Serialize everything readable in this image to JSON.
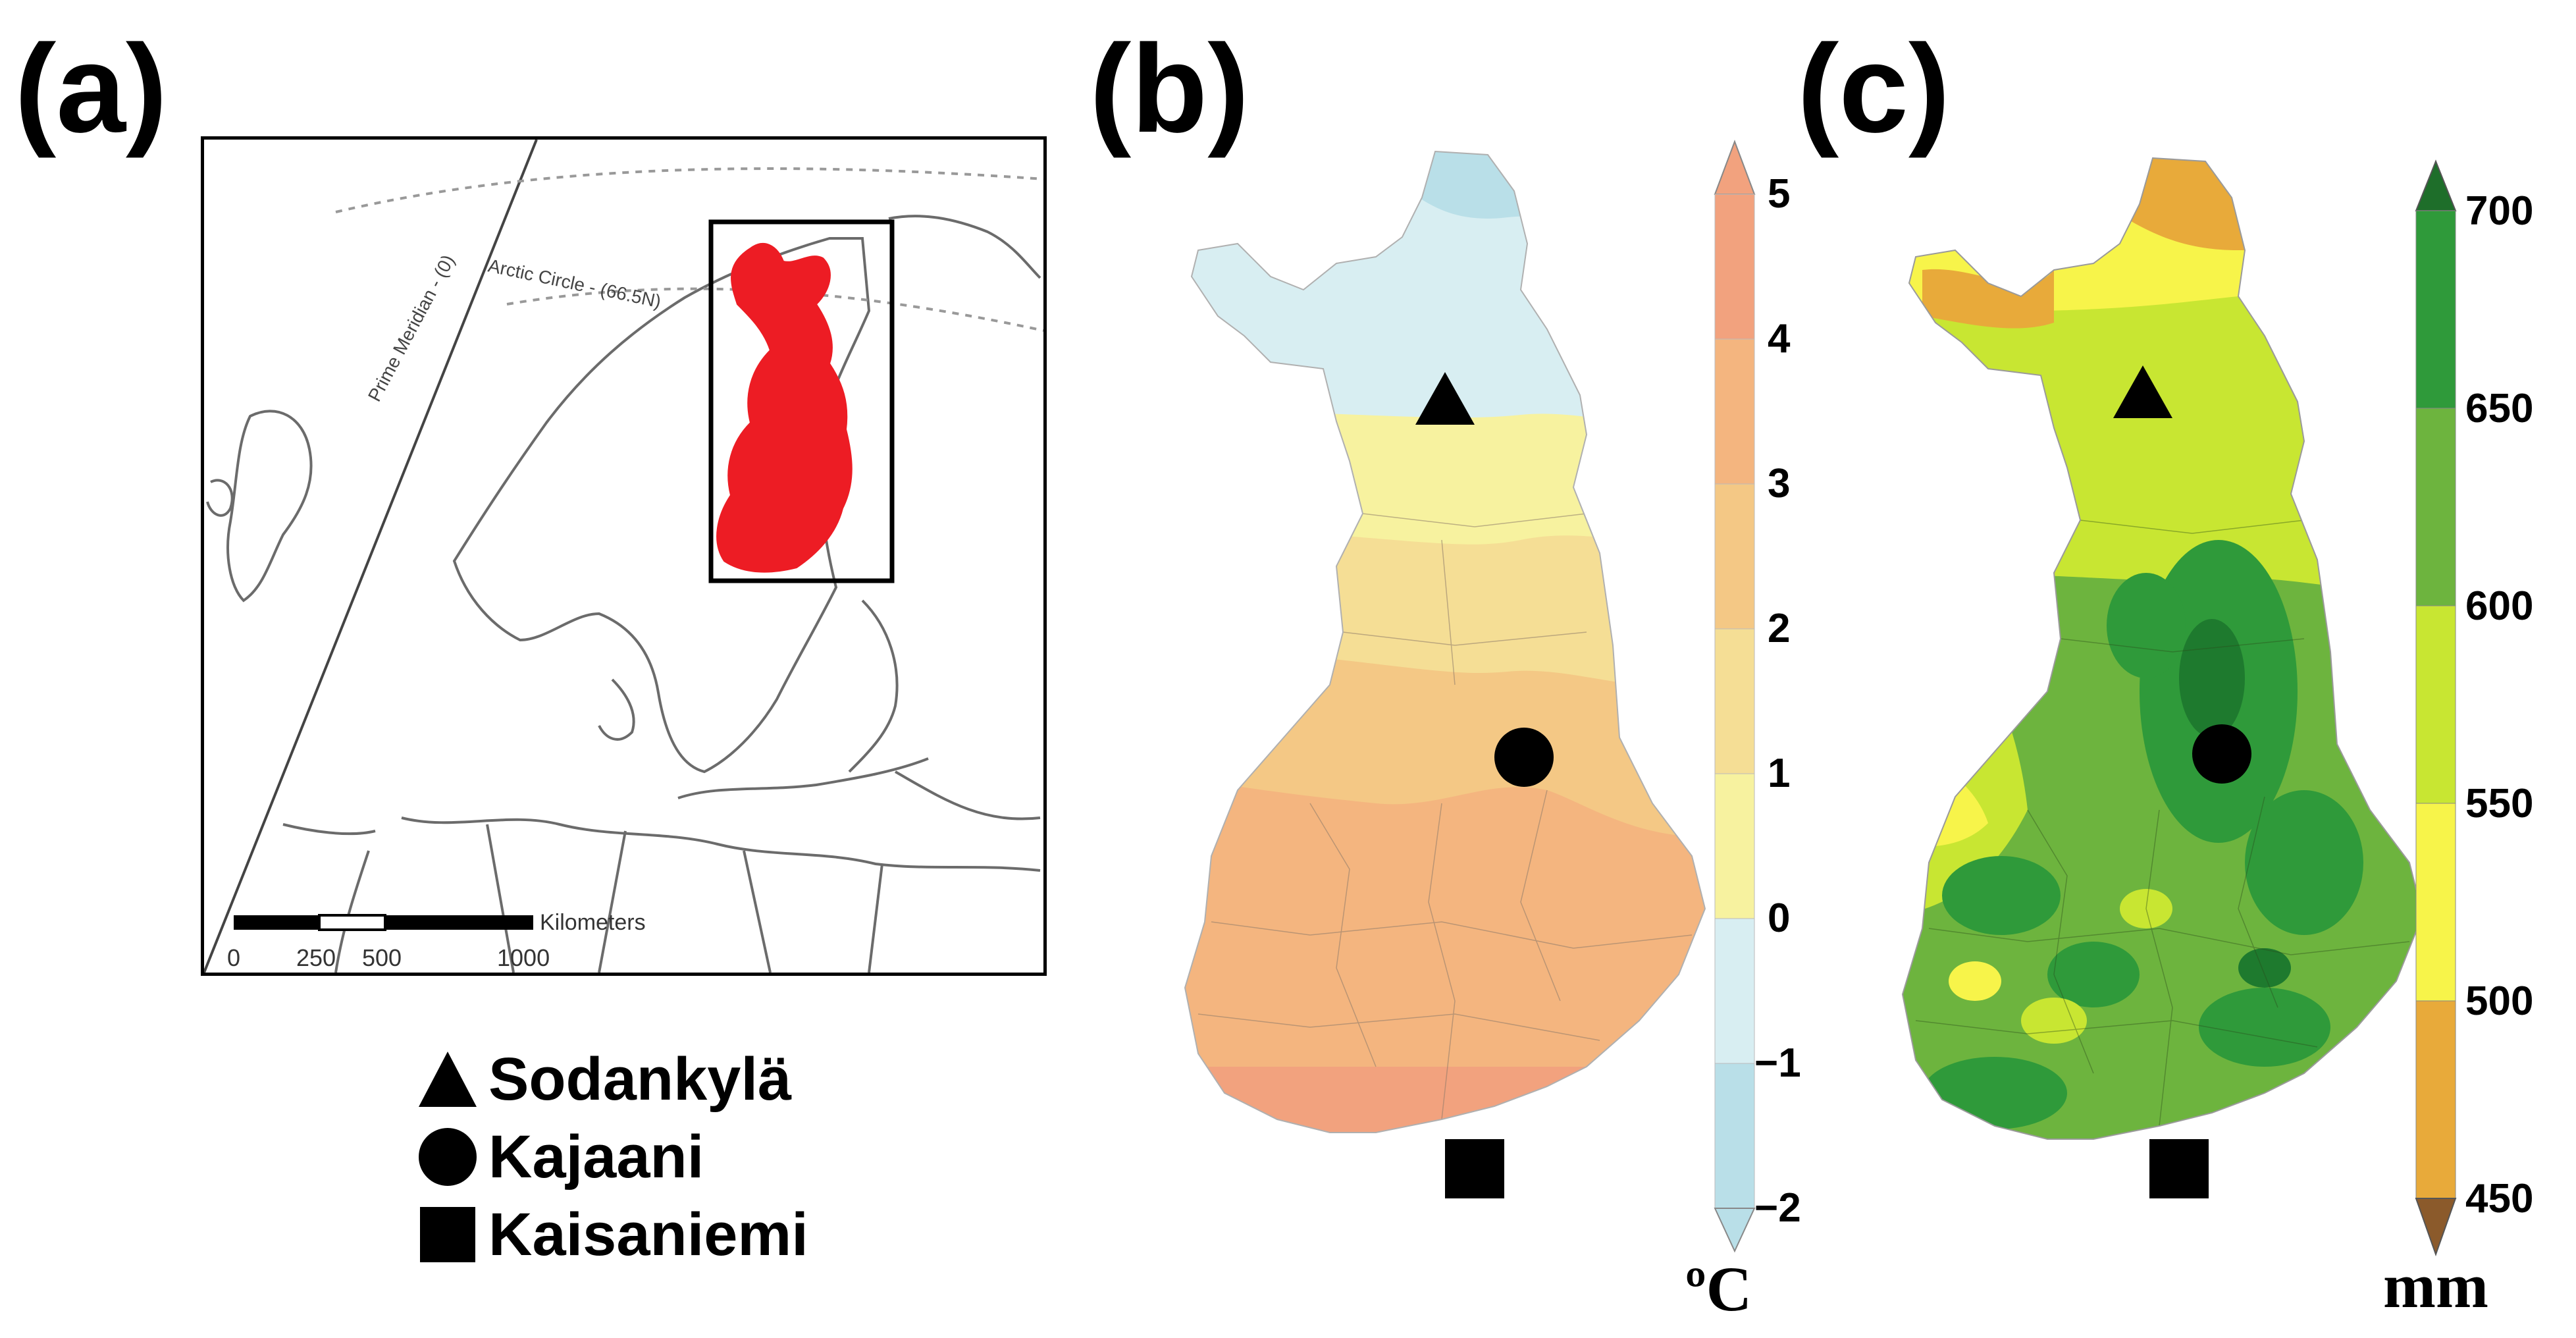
{
  "panels": {
    "a": {
      "label": "(a)"
    },
    "b": {
      "label": "(b)"
    },
    "c": {
      "label": "(c)"
    }
  },
  "inset_map": {
    "prime_meridian_label": "Prime Meridian - (0)",
    "arctic_circle_label": "Arctic Circle - (66.5N)",
    "scale_bar_unit": "Kilometers",
    "scale_ticks": [
      "0",
      "250",
      "500",
      "1000"
    ],
    "highlight_color": "#ed1c24"
  },
  "stations": [
    {
      "name": "Sodankylä",
      "symbol": "triangle-icon"
    },
    {
      "name": "Kajaani",
      "symbol": "circle-icon"
    },
    {
      "name": "Kaisaniemi",
      "symbol": "square-icon"
    }
  ],
  "temperature_colorbar": {
    "unit": "ºC",
    "ticks": [
      "5",
      "4",
      "3",
      "2",
      "1",
      "0",
      "−1",
      "−2"
    ],
    "colors": [
      "#f2a27e",
      "#f4b57f",
      "#f4c885",
      "#f5de95",
      "#f7f29f",
      "#d8eef2",
      "#b9dfe8"
    ]
  },
  "precipitation_colorbar": {
    "unit": "mm",
    "ticks": [
      "700",
      "650",
      "600",
      "550",
      "500",
      "450"
    ],
    "colors": [
      "#2f9a3a",
      "#6db43e",
      "#c8e632",
      "#f7f44a",
      "#e8aa3a"
    ]
  }
}
